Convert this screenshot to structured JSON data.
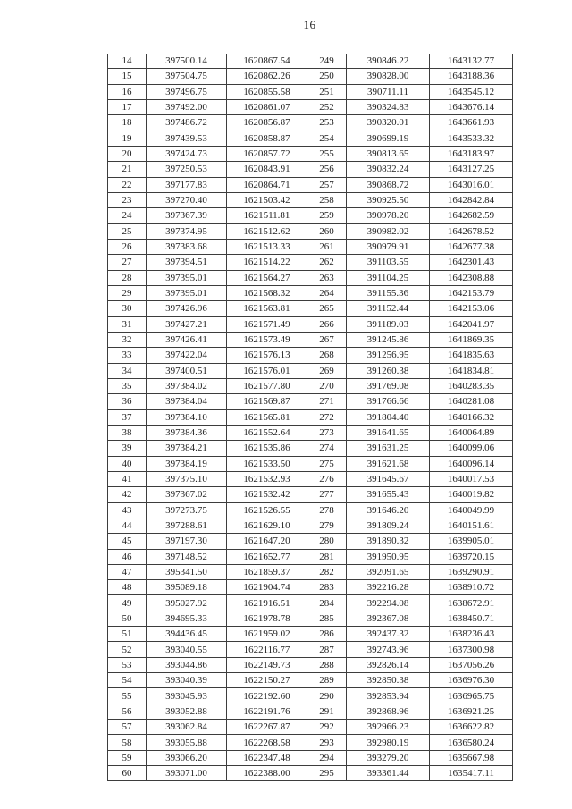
{
  "page": {
    "number": "16"
  },
  "table": {
    "column_names": [
      "point-index-cell",
      "coordinate-a-cell",
      "coordinate-b-cell",
      "point-index-cell",
      "coordinate-a-cell",
      "coordinate-b-cell"
    ],
    "rows": [
      [
        "14",
        "397500.14",
        "1620867.54",
        "249",
        "390846.22",
        "1643132.77"
      ],
      [
        "15",
        "397504.75",
        "1620862.26",
        "250",
        "390828.00",
        "1643188.36"
      ],
      [
        "16",
        "397496.75",
        "1620855.58",
        "251",
        "390711.11",
        "1643545.12"
      ],
      [
        "17",
        "397492.00",
        "1620861.07",
        "252",
        "390324.83",
        "1643676.14"
      ],
      [
        "18",
        "397486.72",
        "1620856.87",
        "253",
        "390320.01",
        "1643661.93"
      ],
      [
        "19",
        "397439.53",
        "1620858.87",
        "254",
        "390699.19",
        "1643533.32"
      ],
      [
        "20",
        "397424.73",
        "1620857.72",
        "255",
        "390813.65",
        "1643183.97"
      ],
      [
        "21",
        "397250.53",
        "1620843.91",
        "256",
        "390832.24",
        "1643127.25"
      ],
      [
        "22",
        "397177.83",
        "1620864.71",
        "257",
        "390868.72",
        "1643016.01"
      ],
      [
        "23",
        "397270.40",
        "1621503.42",
        "258",
        "390925.50",
        "1642842.84"
      ],
      [
        "24",
        "397367.39",
        "1621511.81",
        "259",
        "390978.20",
        "1642682.59"
      ],
      [
        "25",
        "397374.95",
        "1621512.62",
        "260",
        "390982.02",
        "1642678.52"
      ],
      [
        "26",
        "397383.68",
        "1621513.33",
        "261",
        "390979.91",
        "1642677.38"
      ],
      [
        "27",
        "397394.51",
        "1621514.22",
        "262",
        "391103.55",
        "1642301.43"
      ],
      [
        "28",
        "397395.01",
        "1621564.27",
        "263",
        "391104.25",
        "1642308.88"
      ],
      [
        "29",
        "397395.01",
        "1621568.32",
        "264",
        "391155.36",
        "1642153.79"
      ],
      [
        "30",
        "397426.96",
        "1621563.81",
        "265",
        "391152.44",
        "1642153.06"
      ],
      [
        "31",
        "397427.21",
        "1621571.49",
        "266",
        "391189.03",
        "1642041.97"
      ],
      [
        "32",
        "397426.41",
        "1621573.49",
        "267",
        "391245.86",
        "1641869.35"
      ],
      [
        "33",
        "397422.04",
        "1621576.13",
        "268",
        "391256.95",
        "1641835.63"
      ],
      [
        "34",
        "397400.51",
        "1621576.01",
        "269",
        "391260.38",
        "1641834.81"
      ],
      [
        "35",
        "397384.02",
        "1621577.80",
        "270",
        "391769.08",
        "1640283.35"
      ],
      [
        "36",
        "397384.04",
        "1621569.87",
        "271",
        "391766.66",
        "1640281.08"
      ],
      [
        "37",
        "397384.10",
        "1621565.81",
        "272",
        "391804.40",
        "1640166.32"
      ],
      [
        "38",
        "397384.36",
        "1621552.64",
        "273",
        "391641.65",
        "1640064.89"
      ],
      [
        "39",
        "397384.21",
        "1621535.86",
        "274",
        "391631.25",
        "1640099.06"
      ],
      [
        "40",
        "397384.19",
        "1621533.50",
        "275",
        "391621.68",
        "1640096.14"
      ],
      [
        "41",
        "397375.10",
        "1621532.93",
        "276",
        "391645.67",
        "1640017.53"
      ],
      [
        "42",
        "397367.02",
        "1621532.42",
        "277",
        "391655.43",
        "1640019.82"
      ],
      [
        "43",
        "397273.75",
        "1621526.55",
        "278",
        "391646.20",
        "1640049.99"
      ],
      [
        "44",
        "397288.61",
        "1621629.10",
        "279",
        "391809.24",
        "1640151.61"
      ],
      [
        "45",
        "397197.30",
        "1621647.20",
        "280",
        "391890.32",
        "1639905.01"
      ],
      [
        "46",
        "397148.52",
        "1621652.77",
        "281",
        "391950.95",
        "1639720.15"
      ],
      [
        "47",
        "395341.50",
        "1621859.37",
        "282",
        "392091.65",
        "1639290.91"
      ],
      [
        "48",
        "395089.18",
        "1621904.74",
        "283",
        "392216.28",
        "1638910.72"
      ],
      [
        "49",
        "395027.92",
        "1621916.51",
        "284",
        "392294.08",
        "1638672.91"
      ],
      [
        "50",
        "394695.33",
        "1621978.78",
        "285",
        "392367.08",
        "1638450.71"
      ],
      [
        "51",
        "394436.45",
        "1621959.02",
        "286",
        "392437.32",
        "1638236.43"
      ],
      [
        "52",
        "393040.55",
        "1622116.77",
        "287",
        "392743.96",
        "1637300.98"
      ],
      [
        "53",
        "393044.86",
        "1622149.73",
        "288",
        "392826.14",
        "1637056.26"
      ],
      [
        "54",
        "393040.39",
        "1622150.27",
        "289",
        "392850.38",
        "1636976.30"
      ],
      [
        "55",
        "393045.93",
        "1622192.60",
        "290",
        "392853.94",
        "1636965.75"
      ],
      [
        "56",
        "393052.88",
        "1622191.76",
        "291",
        "392868.96",
        "1636921.25"
      ],
      [
        "57",
        "393062.84",
        "1622267.87",
        "292",
        "392966.23",
        "1636622.82"
      ],
      [
        "58",
        "393055.88",
        "1622268.58",
        "293",
        "392980.19",
        "1636580.24"
      ],
      [
        "59",
        "393066.20",
        "1622347.48",
        "294",
        "393279.20",
        "1635667.98"
      ],
      [
        "60",
        "393071.00",
        "1622388.00",
        "295",
        "393361.44",
        "1635417.11"
      ]
    ]
  }
}
